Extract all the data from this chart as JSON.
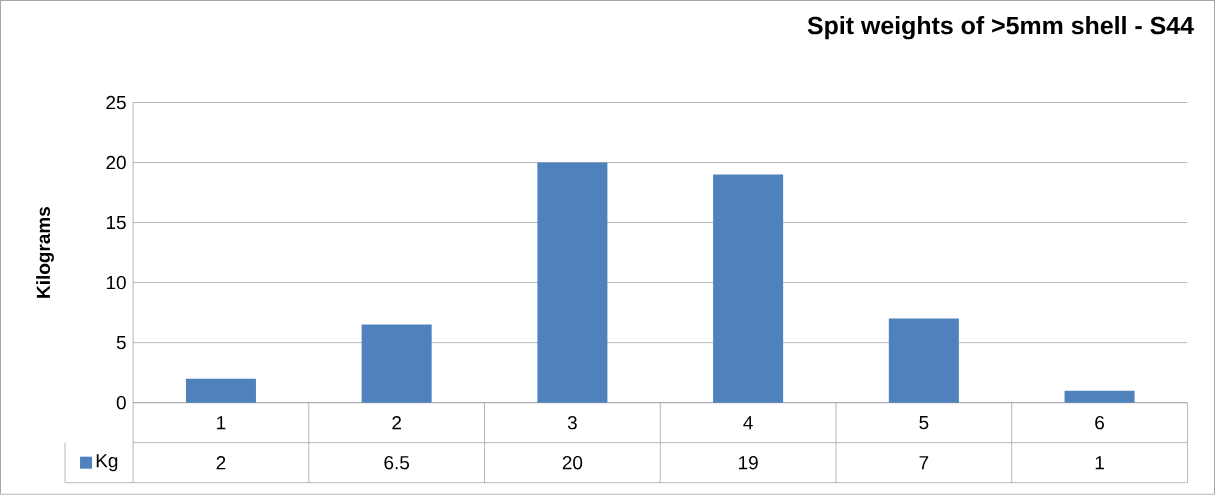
{
  "chart_data": {
    "type": "bar",
    "title": "Spit weights of >5mm shell - S44",
    "ylabel": "Kilograms",
    "categories": [
      "1",
      "2",
      "3",
      "4",
      "5",
      "6"
    ],
    "series": [
      {
        "name": "Kg",
        "color": "#4f81bd",
        "values": [
          2,
          6.5,
          20,
          19,
          7,
          1
        ]
      }
    ],
    "ylim": [
      0,
      25
    ],
    "yticks": [
      0,
      5,
      10,
      15,
      20,
      25
    ],
    "grid": "y",
    "legend": "bottom left",
    "data_labels": true
  }
}
